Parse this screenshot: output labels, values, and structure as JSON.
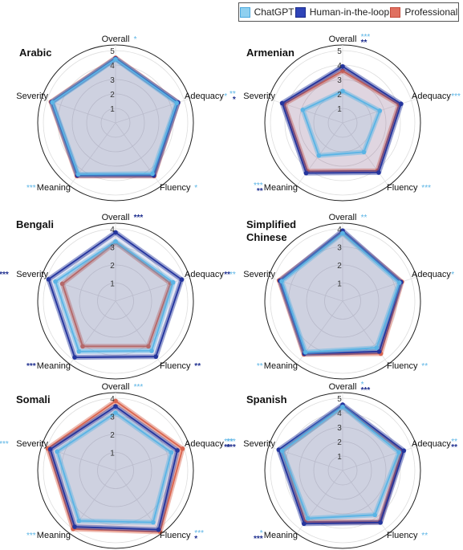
{
  "legend": [
    {
      "name": "ChatGPT",
      "color": "#8fd0f0",
      "edge": "#4aa8de"
    },
    {
      "name": "Human-in-the-loop",
      "color": "#2f44b8",
      "edge": "#1a2a8a"
    },
    {
      "name": "Professional",
      "color": "#e07060",
      "edge": "#c44a3a"
    }
  ],
  "colors": {
    "chatgpt": "#5ab4e5",
    "human": "#24359e",
    "professional": "#d9654f",
    "star_light": "#5ab4e5",
    "star_dark": "#1f2f8f"
  },
  "chart_data": [
    {
      "type": "radar",
      "title": "Arabic",
      "axes": [
        "Overall",
        "Adequacy",
        "Fluency",
        "Meaning",
        "Severity"
      ],
      "r_ticks": [
        "1",
        "2",
        "3",
        "4",
        "5"
      ],
      "rlim": [
        0,
        5
      ],
      "series": [
        {
          "name": "ChatGPT",
          "values": [
            4.4,
            4.45,
            4.35,
            4.4,
            4.6
          ]
        },
        {
          "name": "Human-in-the-loop",
          "values": [
            4.45,
            4.55,
            4.5,
            4.5,
            4.65
          ]
        },
        {
          "name": "Professional",
          "values": [
            4.5,
            4.55,
            4.55,
            4.55,
            4.7
          ]
        }
      ],
      "stars": [
        {
          "light": "*",
          "dark": ""
        },
        {
          "light": "*",
          "dark": ""
        },
        {
          "light": "*",
          "dark": ""
        },
        {
          "light": "***",
          "dark": ""
        },
        {
          "light": "",
          "dark": ""
        }
      ]
    },
    {
      "type": "radar",
      "title": "Armenian",
      "axes": [
        "Overall",
        "Adequacy",
        "Fluency",
        "Meaning",
        "Severity"
      ],
      "r_ticks": [
        "1",
        "2",
        "3",
        "4",
        "5"
      ],
      "rlim": [
        0,
        5
      ],
      "series": [
        {
          "name": "ChatGPT",
          "values": [
            2.2,
            2.7,
            2.5,
            2.8,
            2.9
          ]
        },
        {
          "name": "Human-in-the-loop",
          "values": [
            3.9,
            4.25,
            4.25,
            4.3,
            4.4
          ]
        },
        {
          "name": "Professional",
          "values": [
            3.6,
            4.1,
            4.1,
            4.15,
            4.25
          ]
        }
      ],
      "stars": [
        {
          "light": "***",
          "dark": "**"
        },
        {
          "light": "***",
          "dark": ""
        },
        {
          "light": "***",
          "dark": ""
        },
        {
          "light": "***",
          "dark": "**"
        },
        {
          "light": "**",
          "dark": "*"
        }
      ]
    },
    {
      "type": "radar",
      "title": "Bengali",
      "axes": [
        "Overall",
        "Adequacy",
        "Fluency",
        "Meaning",
        "Severity"
      ],
      "r_ticks": [
        "1",
        "2",
        "3",
        "4"
      ],
      "rlim": [
        0,
        4
      ],
      "series": [
        {
          "name": "ChatGPT",
          "values": [
            3.3,
            3.35,
            3.4,
            3.45,
            3.5
          ]
        },
        {
          "name": "Human-in-the-loop",
          "values": [
            3.8,
            3.85,
            3.8,
            3.85,
            3.9
          ]
        },
        {
          "name": "Professional",
          "values": [
            3.25,
            3.2,
            3.1,
            3.1,
            3.1
          ]
        }
      ],
      "stars": [
        {
          "light": "",
          "dark": "***"
        },
        {
          "light": "",
          "dark": "**"
        },
        {
          "light": "",
          "dark": "**"
        },
        {
          "light": "",
          "dark": "***"
        },
        {
          "light": "",
          "dark": "***"
        }
      ]
    },
    {
      "type": "radar",
      "title": "Simplified Chinese",
      "axes": [
        "Overall",
        "Adequacy",
        "Fluency",
        "Meaning",
        "Severity"
      ],
      "r_ticks": [
        "1",
        "2",
        "3",
        "4"
      ],
      "rlim": [
        0,
        4
      ],
      "series": [
        {
          "name": "ChatGPT",
          "values": [
            3.75,
            3.3,
            3.2,
            3.5,
            3.55
          ]
        },
        {
          "name": "Human-in-the-loop",
          "values": [
            3.9,
            3.4,
            3.45,
            3.6,
            3.65
          ]
        },
        {
          "name": "Professional",
          "values": [
            3.8,
            3.45,
            3.6,
            3.65,
            3.7
          ]
        }
      ],
      "stars": [
        {
          "light": "**",
          "dark": ""
        },
        {
          "light": "*",
          "dark": ""
        },
        {
          "light": "**",
          "dark": ""
        },
        {
          "light": "**",
          "dark": ""
        },
        {
          "light": "**",
          "dark": ""
        }
      ]
    },
    {
      "type": "radar",
      "title": "Somali",
      "axes": [
        "Overall",
        "Adequacy",
        "Fluency",
        "Meaning",
        "Severity"
      ],
      "r_ticks": [
        "1",
        "2",
        "3",
        "4"
      ],
      "rlim": [
        0,
        4
      ],
      "series": [
        {
          "name": "ChatGPT",
          "values": [
            3.2,
            3.25,
            3.55,
            3.45,
            3.4
          ]
        },
        {
          "name": "Human-in-the-loop",
          "values": [
            3.55,
            3.6,
            4.05,
            3.85,
            3.8
          ]
        },
        {
          "name": "Professional",
          "values": [
            3.85,
            3.9,
            4.2,
            4.0,
            3.95
          ]
        }
      ],
      "stars": [
        {
          "light": "***",
          "dark": ""
        },
        {
          "light": "***",
          "dark": "**"
        },
        {
          "light": "***",
          "dark": "*"
        },
        {
          "light": "***",
          "dark": ""
        },
        {
          "light": "***",
          "dark": ""
        }
      ]
    },
    {
      "type": "radar",
      "title": "Spanish",
      "axes": [
        "Overall",
        "Adequacy",
        "Fluency",
        "Meaning",
        "Severity"
      ],
      "r_ticks": [
        "1",
        "2",
        "3",
        "4",
        "5"
      ],
      "rlim": [
        0,
        5
      ],
      "series": [
        {
          "name": "ChatGPT",
          "values": [
            4.4,
            4.1,
            3.8,
            4.1,
            4.4
          ]
        },
        {
          "name": "Human-in-the-loop",
          "values": [
            4.55,
            4.45,
            4.45,
            4.55,
            4.65
          ]
        },
        {
          "name": "Professional",
          "values": [
            4.45,
            4.3,
            4.4,
            4.4,
            4.4
          ]
        }
      ],
      "stars": [
        {
          "light": "*",
          "dark": "***"
        },
        {
          "light": "**",
          "dark": "**"
        },
        {
          "light": "**",
          "dark": ""
        },
        {
          "light": "*",
          "dark": "***"
        },
        {
          "light": "***",
          "dark": "***"
        }
      ]
    }
  ]
}
